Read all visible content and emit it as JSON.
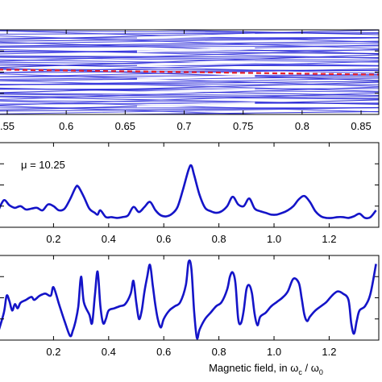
{
  "chart_data": [
    {
      "type": "line",
      "panel": "spectrum",
      "xlim": [
        0.5425,
        0.865
      ],
      "ylim": [
        0,
        1
      ],
      "x_ticks": [
        0.55,
        0.6,
        0.65,
        0.7,
        0.75,
        0.8,
        0.85
      ],
      "x_tick_labels": [
        ".55",
        "0.6",
        "0.65",
        "0.7",
        "0.75",
        "0.8",
        "0.85"
      ],
      "xlabel": "",
      "ylabel": "",
      "grid": false,
      "line_color": "#1a1ad0",
      "reference_line": {
        "style": "dashed",
        "color": "#e8202a",
        "y_start": 0.53,
        "y_end": 0.47
      }
    },
    {
      "type": "line",
      "panel": "upper-response",
      "annotation": "μ = 10.25",
      "xlim": [
        0,
        1.38
      ],
      "ylim": [
        0,
        1
      ],
      "x_ticks": [
        0.2,
        0.4,
        0.6,
        0.8,
        1.0,
        1.2
      ],
      "x_tick_labels": [
        "0.2",
        "0.4",
        "0.6",
        "0.8",
        "1.0",
        "1.2"
      ],
      "xlabel": "",
      "ylabel": "",
      "grid": false,
      "series": [
        {
          "color": "#1414c8",
          "x": [
            0.0,
            0.02,
            0.04,
            0.06,
            0.08,
            0.1,
            0.12,
            0.14,
            0.16,
            0.18,
            0.2,
            0.22,
            0.24,
            0.26,
            0.28,
            0.29,
            0.31,
            0.33,
            0.35,
            0.36,
            0.37,
            0.39,
            0.41,
            0.43,
            0.45,
            0.47,
            0.49,
            0.51,
            0.53,
            0.55,
            0.57,
            0.59,
            0.61,
            0.63,
            0.65,
            0.67,
            0.69,
            0.7,
            0.71,
            0.73,
            0.75,
            0.77,
            0.79,
            0.81,
            0.83,
            0.85,
            0.87,
            0.89,
            0.91,
            0.93,
            0.95,
            0.97,
            0.99,
            1.01,
            1.03,
            1.05,
            1.07,
            1.09,
            1.11,
            1.13,
            1.15,
            1.17,
            1.19,
            1.21,
            1.23,
            1.25,
            1.27,
            1.29,
            1.31,
            1.33,
            1.35,
            1.37
          ],
          "y": [
            0.2,
            0.32,
            0.26,
            0.23,
            0.25,
            0.21,
            0.22,
            0.23,
            0.2,
            0.27,
            0.25,
            0.2,
            0.22,
            0.33,
            0.47,
            0.48,
            0.36,
            0.22,
            0.17,
            0.15,
            0.2,
            0.12,
            0.12,
            0.11,
            0.12,
            0.14,
            0.24,
            0.18,
            0.24,
            0.3,
            0.2,
            0.14,
            0.13,
            0.16,
            0.24,
            0.45,
            0.68,
            0.73,
            0.62,
            0.38,
            0.23,
            0.19,
            0.17,
            0.19,
            0.25,
            0.36,
            0.27,
            0.25,
            0.34,
            0.22,
            0.19,
            0.17,
            0.15,
            0.15,
            0.17,
            0.2,
            0.25,
            0.33,
            0.37,
            0.3,
            0.19,
            0.13,
            0.11,
            0.11,
            0.12,
            0.12,
            0.11,
            0.13,
            0.16,
            0.11,
            0.12,
            0.2
          ]
        }
      ]
    },
    {
      "type": "line",
      "panel": "lower-response",
      "xlabel_parts": [
        "Magnetic field, in ω",
        "c",
        " / ω",
        "0"
      ],
      "xlim": [
        0,
        1.38
      ],
      "ylim": [
        -1,
        1
      ],
      "x_ticks": [
        0.2,
        0.4,
        0.6,
        0.8,
        1.0,
        1.2
      ],
      "x_tick_labels": [
        "0.2",
        "0.4",
        "0.6",
        "0.8",
        "1.0",
        "1.2"
      ],
      "ylabel": "",
      "grid": false,
      "series": [
        {
          "color": "#1414c8",
          "x": [
            0.0,
            0.02,
            0.03,
            0.04,
            0.05,
            0.06,
            0.07,
            0.08,
            0.1,
            0.12,
            0.13,
            0.15,
            0.17,
            0.19,
            0.2,
            0.22,
            0.24,
            0.26,
            0.27,
            0.28,
            0.29,
            0.3,
            0.31,
            0.33,
            0.34,
            0.35,
            0.36,
            0.37,
            0.38,
            0.39,
            0.4,
            0.42,
            0.44,
            0.46,
            0.48,
            0.49,
            0.5,
            0.51,
            0.52,
            0.53,
            0.54,
            0.55,
            0.56,
            0.57,
            0.58,
            0.59,
            0.6,
            0.62,
            0.64,
            0.66,
            0.68,
            0.69,
            0.7,
            0.71,
            0.72,
            0.73,
            0.75,
            0.77,
            0.79,
            0.81,
            0.83,
            0.84,
            0.85,
            0.86,
            0.87,
            0.88,
            0.89,
            0.9,
            0.91,
            0.92,
            0.93,
            0.94,
            0.95,
            0.97,
            0.99,
            1.01,
            1.03,
            1.05,
            1.07,
            1.09,
            1.1,
            1.11,
            1.12,
            1.13,
            1.15,
            1.17,
            1.19,
            1.21,
            1.23,
            1.25,
            1.27,
            1.28,
            1.29,
            1.3,
            1.31,
            1.33,
            1.35,
            1.37
          ],
          "y": [
            -0.8,
            -0.35,
            0.05,
            -0.08,
            -0.3,
            -0.15,
            -0.25,
            -0.12,
            -0.05,
            0.02,
            -0.05,
            0.05,
            0.1,
            0.05,
            0.25,
            -0.15,
            -0.55,
            -0.9,
            -0.78,
            -0.55,
            -0.2,
            0.5,
            -0.1,
            -0.4,
            -0.6,
            0.05,
            0.62,
            -0.2,
            -0.6,
            -0.5,
            -0.3,
            -0.25,
            -0.2,
            -0.15,
            0.1,
            0.4,
            -0.1,
            -0.5,
            -0.3,
            0.15,
            0.5,
            0.78,
            0.3,
            -0.2,
            -0.55,
            -0.7,
            -0.5,
            -0.3,
            -0.2,
            -0.1,
            0.3,
            0.85,
            0.7,
            -0.3,
            -0.95,
            -0.75,
            -0.5,
            -0.35,
            -0.2,
            -0.1,
            0.2,
            0.5,
            0.6,
            0.35,
            -0.5,
            -0.6,
            -0.3,
            0.2,
            0.3,
            0.1,
            -0.4,
            -0.65,
            -0.45,
            -0.35,
            -0.2,
            -0.1,
            0.0,
            0.15,
            0.45,
            0.35,
            0.0,
            -0.4,
            -0.55,
            -0.45,
            -0.3,
            -0.2,
            -0.1,
            0.05,
            0.15,
            0.1,
            -0.05,
            -0.6,
            -0.85,
            -0.55,
            -0.3,
            -0.2,
            0.1,
            0.8
          ]
        }
      ]
    }
  ]
}
